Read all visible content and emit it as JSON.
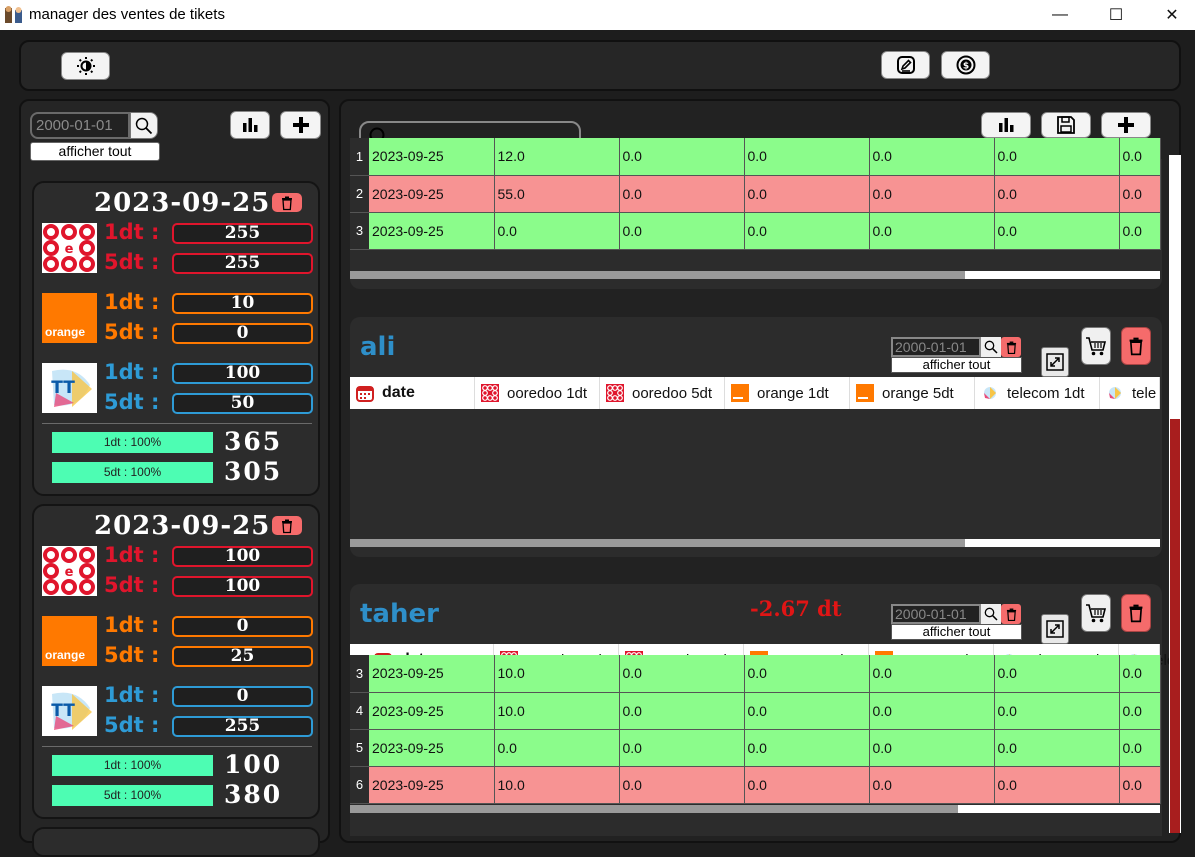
{
  "window": {
    "title": "manager des ventes de tikets",
    "minimize": "—",
    "maximize": "☐",
    "close": "✕"
  },
  "toolbar": {
    "theme_icon": "brightness-icon",
    "edit_icon": "edit-icon",
    "sync_icon": "money-sync-icon"
  },
  "left": {
    "date_value": "2000-01-01",
    "show_all": "afficher tout",
    "cards": [
      {
        "date": "2023-09-25",
        "ooredoo_1dt": "255",
        "ooredoo_5dt": "255",
        "orange_1dt": "10",
        "orange_5dt": "0",
        "telecom_1dt": "100",
        "telecom_5dt": "50",
        "progress_1dt_label": "1dt : 100%",
        "progress_1dt": 100,
        "progress_5dt_label": "5dt : 100%",
        "progress_5dt": 100,
        "total_1dt": "365",
        "total_5dt": "305"
      },
      {
        "date": "2023-09-25",
        "ooredoo_1dt": "100",
        "ooredoo_5dt": "100",
        "orange_1dt": "0",
        "orange_5dt": "25",
        "telecom_1dt": "0",
        "telecom_5dt": "255",
        "progress_1dt_label": "1dt : 100%",
        "progress_1dt": 100,
        "progress_5dt_label": "5dt : 100%",
        "progress_5dt": 100,
        "total_1dt": "100",
        "total_5dt": "380"
      }
    ],
    "label_1dt": "1dt :",
    "label_5dt": "5dt :",
    "orange_logo_text": "orange"
  },
  "right": {
    "search_placeholder": "",
    "top_table": {
      "rows": [
        {
          "n": "1",
          "date": "2023-09-25",
          "c1": "12.0",
          "c2": "0.0",
          "c3": "0.0",
          "c4": "0.0",
          "c5": "0.0",
          "c6": "0.0",
          "status": "green"
        },
        {
          "n": "2",
          "date": "2023-09-25",
          "c1": "55.0",
          "c2": "0.0",
          "c3": "0.0",
          "c4": "0.0",
          "c5": "0.0",
          "c6": "0.0",
          "status": "red"
        },
        {
          "n": "3",
          "date": "2023-09-25",
          "c1": "0.0",
          "c2": "0.0",
          "c3": "0.0",
          "c4": "0.0",
          "c5": "0.0",
          "c6": "0.0",
          "status": "green"
        }
      ]
    },
    "columns": [
      "date",
      "ooredoo 1dt",
      "ooredoo 5dt",
      "orange 1dt",
      "orange 5dt",
      "telecom 1dt",
      "tele"
    ],
    "sellers": [
      {
        "name": "ali",
        "balance": "",
        "date_value": "2000-01-01",
        "show_all": "afficher tout",
        "rows": []
      },
      {
        "name": "taher",
        "balance": "-2.67 dt",
        "balance_color": "#e01515",
        "date_value": "2000-01-01",
        "show_all": "afficher tout",
        "rows": [
          {
            "n": "3",
            "date": "2023-09-25",
            "c1": "10.0",
            "c2": "0.0",
            "c3": "0.0",
            "c4": "0.0",
            "c5": "0.0",
            "c6": "0.0",
            "status": "green"
          },
          {
            "n": "4",
            "date": "2023-09-25",
            "c1": "10.0",
            "c2": "0.0",
            "c3": "0.0",
            "c4": "0.0",
            "c5": "0.0",
            "c6": "0.0",
            "status": "green"
          },
          {
            "n": "5",
            "date": "2023-09-25",
            "c1": "0.0",
            "c2": "0.0",
            "c3": "0.0",
            "c4": "0.0",
            "c5": "0.0",
            "c6": "0.0",
            "status": "green"
          },
          {
            "n": "6",
            "date": "2023-09-25",
            "c1": "10.0",
            "c2": "0.0",
            "c3": "0.0",
            "c4": "0.0",
            "c5": "0.0",
            "c6": "0.0",
            "status": "red"
          }
        ]
      }
    ]
  },
  "colors": {
    "ooredoo": "#e0152c",
    "orange": "#ff7900",
    "telecom": "#2e9bd6"
  }
}
